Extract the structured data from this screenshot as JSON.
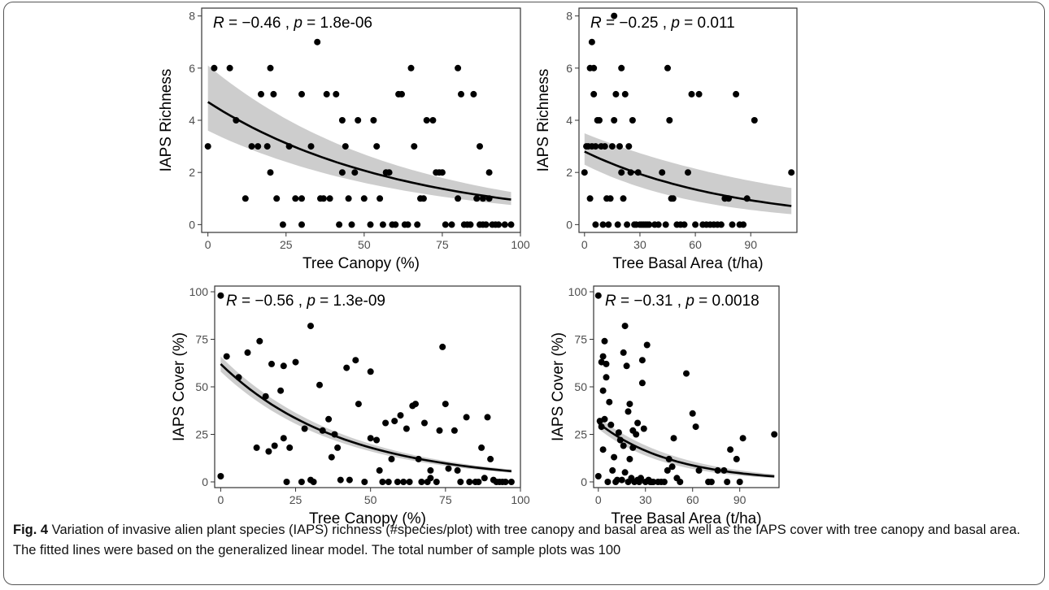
{
  "figure": {
    "caption_label": "Fig. 4",
    "caption_text": " Variation of invasive alien plant species (IAPS) richness (#species/plot) with tree canopy and basal area as well as the IAPS cover with tree canopy and basal area. The fitted lines were based on the generalized linear model. The total number of sample plots was 100"
  },
  "colors": {
    "points": "#000000",
    "fit": "#000000",
    "ribbon": "#c8c8c8",
    "panel_border": "#333333"
  },
  "chart_data": [
    {
      "type": "scatter",
      "xlabel": "Tree Canopy (%)",
      "ylabel": "IAPS Richness",
      "stat_r": "R",
      "stat_text": " = −0.46 , ",
      "stat_p": "p",
      "stat_value": " = 1.8e-06",
      "xlim": [
        -2,
        100
      ],
      "ylim": [
        -0.3,
        8.3
      ],
      "xticks": [
        0,
        25,
        50,
        75,
        100
      ],
      "yticks": [
        0,
        2,
        4,
        6,
        8
      ],
      "x": [
        0,
        2,
        7,
        9,
        12,
        14,
        16,
        17,
        19,
        20,
        20,
        21,
        22,
        24,
        26,
        28,
        30,
        30,
        30,
        33,
        35,
        36,
        37,
        38,
        39,
        41,
        42,
        43,
        43,
        44,
        45,
        46,
        47,
        48,
        50,
        52,
        53,
        54,
        55,
        56,
        57,
        58,
        59,
        60,
        61,
        62,
        63,
        64,
        65,
        66,
        67,
        68,
        69,
        70,
        72,
        73,
        74,
        75,
        76,
        78,
        80,
        80,
        81,
        82,
        83,
        84,
        85,
        86,
        87,
        87,
        88,
        88,
        89,
        90,
        90,
        91,
        92,
        93,
        95,
        97
      ],
      "y": [
        3,
        6,
        6,
        4,
        1,
        3,
        3,
        5,
        3,
        6,
        2,
        5,
        1,
        0,
        3,
        1,
        1,
        5,
        0,
        3,
        7,
        1,
        1,
        5,
        1,
        5,
        0,
        4,
        2,
        3,
        1,
        0,
        2,
        4,
        1,
        0,
        4,
        3,
        1,
        0,
        2,
        2,
        0,
        0,
        5,
        5,
        0,
        0,
        6,
        3,
        0,
        1,
        1,
        4,
        4,
        2,
        2,
        2,
        0,
        0,
        6,
        1,
        5,
        0,
        0,
        0,
        5,
        1,
        0,
        3,
        0,
        1,
        0,
        1,
        2,
        0,
        0,
        0,
        0,
        0
      ],
      "fit": {
        "x": [
          0,
          97
        ],
        "a": 4.7,
        "k": 0.0164
      },
      "band": {
        "lo_start": 3.6,
        "hi_start": 6.1,
        "lo_end": 0.75,
        "hi_end": 1.25
      }
    },
    {
      "type": "scatter",
      "xlabel": "Tree Basal Area (t/ha)",
      "ylabel": "IAPS Richness",
      "stat_r": "R",
      "stat_text": " = −0.25 , ",
      "stat_p": "p",
      "stat_value": " = 0.011",
      "xlim": [
        -3,
        115
      ],
      "ylim": [
        -0.3,
        8.3
      ],
      "xticks": [
        0,
        30,
        60,
        90
      ],
      "yticks": [
        0,
        2,
        4,
        6,
        8
      ],
      "x": [
        0,
        1,
        2,
        3,
        3,
        4,
        4,
        5,
        5,
        6,
        6,
        7,
        8,
        9,
        10,
        11,
        12,
        13,
        14,
        15,
        16,
        16,
        17,
        18,
        19,
        20,
        20,
        21,
        22,
        23,
        24,
        25,
        26,
        27,
        28,
        29,
        30,
        31,
        32,
        33,
        34,
        35,
        38,
        40,
        42,
        44,
        45,
        46,
        47,
        48,
        50,
        52,
        54,
        56,
        58,
        60,
        62,
        64,
        66,
        68,
        70,
        72,
        74,
        76,
        78,
        80,
        82,
        84,
        86,
        88,
        92,
        112
      ],
      "y": [
        2,
        3,
        3,
        6,
        1,
        7,
        3,
        6,
        5,
        3,
        0,
        4,
        4,
        3,
        0,
        3,
        1,
        0,
        1,
        3,
        8,
        4,
        5,
        0,
        3,
        2,
        6,
        1,
        5,
        0,
        3,
        2,
        4,
        0,
        0,
        2,
        0,
        0,
        0,
        0,
        0,
        0,
        0,
        0,
        2,
        0,
        6,
        4,
        1,
        1,
        0,
        0,
        0,
        2,
        5,
        0,
        5,
        0,
        0,
        0,
        0,
        0,
        0,
        1,
        1,
        0,
        5,
        0,
        0,
        1,
        4,
        2
      ],
      "fit": {
        "x": [
          0,
          112
        ],
        "a": 2.8,
        "k": 0.0122
      },
      "band": {
        "lo_start": 2.3,
        "hi_start": 3.5,
        "lo_end": 0.4,
        "hi_end": 1.4
      }
    },
    {
      "type": "scatter",
      "xlabel": "Tree Canopy (%)",
      "ylabel": "IAPS Cover (%)",
      "stat_r": "R",
      "stat_text": " = −0.56 , ",
      "stat_p": "p",
      "stat_value": " = 1.3e-09",
      "xlim": [
        -2,
        100
      ],
      "ylim": [
        -3,
        103
      ],
      "xticks": [
        0,
        25,
        50,
        75,
        100
      ],
      "yticks": [
        0,
        25,
        50,
        75,
        100
      ],
      "x": [
        0,
        0,
        2,
        6,
        9,
        12,
        13,
        15,
        16,
        17,
        18,
        20,
        21,
        21,
        22,
        23,
        25,
        27,
        28,
        30,
        30,
        31,
        33,
        34,
        36,
        37,
        38,
        39,
        40,
        42,
        43,
        45,
        46,
        48,
        50,
        50,
        52,
        53,
        54,
        55,
        56,
        57,
        58,
        59,
        60,
        61,
        62,
        63,
        64,
        65,
        66,
        67,
        68,
        69,
        70,
        70,
        72,
        73,
        74,
        75,
        76,
        78,
        79,
        80,
        82,
        83,
        85,
        86,
        87,
        88,
        89,
        90,
        91,
        92,
        93,
        94,
        95,
        97
      ],
      "y": [
        98,
        3,
        66,
        55,
        68,
        18,
        74,
        45,
        16,
        62,
        19,
        48,
        23,
        61,
        0,
        18,
        63,
        0,
        28,
        82,
        1,
        0,
        51,
        27,
        33,
        13,
        25,
        18,
        1,
        60,
        1,
        64,
        41,
        0,
        23,
        58,
        22,
        6,
        0,
        31,
        0,
        12,
        32,
        0,
        35,
        0,
        28,
        0,
        40,
        41,
        12,
        0,
        31,
        0,
        2,
        6,
        0,
        27,
        71,
        41,
        7,
        27,
        6,
        0,
        34,
        0,
        0,
        0,
        18,
        2,
        34,
        12,
        1,
        0,
        0,
        0,
        0,
        0
      ],
      "fit": {
        "x": [
          0,
          97
        ],
        "a": 62,
        "k": 0.0247
      },
      "band": {
        "lo_start": 58,
        "hi_start": 66,
        "lo_end": 4.8,
        "hi_end": 6.5
      }
    },
    {
      "type": "scatter",
      "xlabel": "Tree Basal Area (t/ha)",
      "ylabel": "IAPS Cover (%)",
      "stat_r": "R",
      "stat_text": " = −0.31 , ",
      "stat_p": "p",
      "stat_value": " = 0.0018",
      "xlim": [
        -3,
        115
      ],
      "ylim": [
        -3,
        103
      ],
      "xticks": [
        0,
        30,
        60,
        90
      ],
      "yticks": [
        0,
        25,
        50,
        75,
        100
      ],
      "x": [
        0,
        0,
        1,
        2,
        2,
        3,
        3,
        3,
        4,
        4,
        5,
        5,
        6,
        7,
        8,
        9,
        10,
        11,
        12,
        13,
        14,
        15,
        16,
        16,
        17,
        17,
        18,
        19,
        19,
        20,
        20,
        21,
        22,
        22,
        23,
        24,
        25,
        25,
        26,
        27,
        28,
        28,
        29,
        30,
        31,
        32,
        33,
        34,
        35,
        38,
        40,
        42,
        44,
        45,
        47,
        48,
        50,
        52,
        56,
        60,
        62,
        64,
        70,
        72,
        76,
        80,
        82,
        84,
        88,
        90,
        92,
        112
      ],
      "y": [
        98,
        3,
        32,
        63,
        29,
        48,
        66,
        17,
        74,
        33,
        62,
        55,
        0,
        42,
        30,
        6,
        13,
        0,
        1,
        26,
        22,
        1,
        68,
        19,
        82,
        5,
        61,
        0,
        37,
        41,
        12,
        2,
        27,
        18,
        0,
        25,
        31,
        1,
        0,
        2,
        64,
        52,
        28,
        0,
        72,
        1,
        0,
        0,
        0,
        0,
        0,
        0,
        6,
        12,
        8,
        23,
        2,
        0,
        57,
        36,
        29,
        6,
        0,
        0,
        6,
        6,
        0,
        17,
        12,
        0,
        23,
        25
      ],
      "fit": {
        "x": [
          0,
          112
        ],
        "a": 31,
        "k": 0.0212
      },
      "band": {
        "lo_start": 28,
        "hi_start": 34,
        "lo_end": 2,
        "hi_end": 4
      }
    }
  ]
}
